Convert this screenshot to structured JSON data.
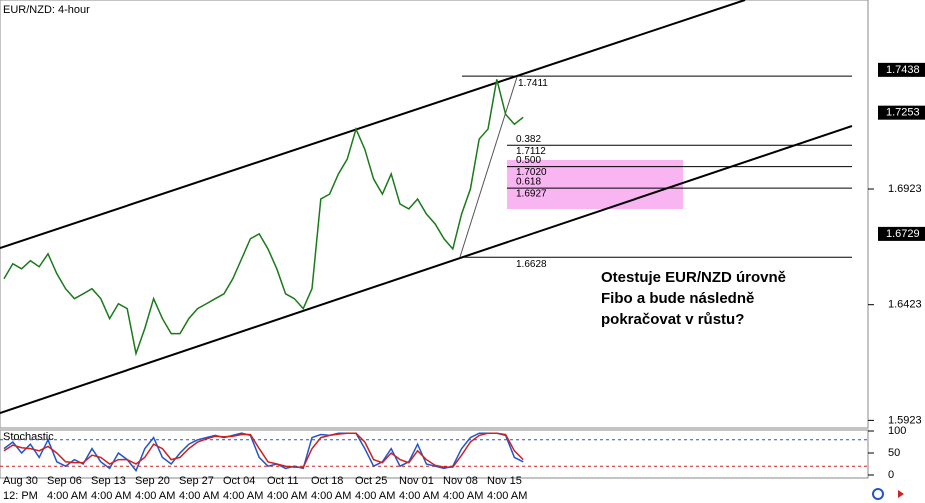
{
  "chart_data": [
    {
      "type": "line",
      "title": "EUR/NZD: 4-hour",
      "categories": [
        "Aug 30",
        null,
        null,
        null,
        null,
        "Sep 06",
        null,
        null,
        null,
        null,
        "Sep 13",
        null,
        null,
        null,
        null,
        "Sep 20",
        null,
        null,
        null,
        null,
        "Sep 27",
        null,
        null,
        null,
        null,
        "Oct 04",
        null,
        null,
        null,
        null,
        "Oct 11",
        null,
        null,
        null,
        null,
        "Oct 18",
        null,
        null,
        null,
        null,
        "Oct 25",
        null,
        null,
        null,
        null,
        "Nov 01",
        null,
        null,
        null,
        null,
        "Nov 08",
        null,
        null,
        null,
        null,
        "Nov 15",
        null,
        null,
        null,
        null
      ],
      "time_labels": [
        "12: PM",
        null,
        null,
        null,
        null,
        "4:00 AM",
        null,
        null,
        null,
        null,
        "4:00 AM",
        null,
        null,
        null,
        null,
        "4:00 AM",
        null,
        null,
        null,
        null,
        "4:00 AM",
        null,
        null,
        null,
        null,
        "4:00 AM",
        null,
        null,
        null,
        null,
        "4:00 AM",
        null,
        null,
        null,
        null,
        "4:00 AM",
        null,
        null,
        null,
        null,
        "4:00 AM",
        null,
        null,
        null,
        null,
        "4:00 AM",
        null,
        null,
        null,
        null,
        "4:00 AM",
        null,
        null,
        null,
        null,
        "4:00 AM",
        null,
        null,
        null,
        null
      ],
      "series": [
        {
          "color": "#1a7a1a",
          "values": [
            1.6535,
            1.66,
            1.6578,
            1.6613,
            1.6587,
            1.6643,
            1.6557,
            1.6492,
            1.6449,
            1.647,
            1.6492,
            1.6449,
            1.6363,
            1.6427,
            1.6406,
            1.6212,
            1.632,
            1.6449,
            1.6363,
            1.6298,
            1.6298,
            1.6363,
            1.6406,
            1.6427,
            1.6449,
            1.647,
            1.6535,
            1.6621,
            1.6708,
            1.6729,
            1.6664,
            1.6578,
            1.647,
            1.6449,
            1.6406,
            1.6492,
            1.688,
            1.6901,
            1.6988,
            1.7052,
            1.7182,
            1.7095,
            1.6966,
            1.6901,
            1.6988,
            1.6858,
            1.6837,
            1.688,
            1.6815,
            1.6772,
            1.6708,
            1.6664,
            1.6815,
            1.6923,
            1.7139,
            1.7182,
            1.7397,
            1.7246,
            1.7203,
            1.7233
          ]
        }
      ],
      "ylim": [
        1.589,
        1.774
      ],
      "yticks": [
        1.5923,
        1.6423,
        1.6923
      ],
      "price_markers": [
        1.7438,
        1.7253,
        1.6729
      ],
      "fib": {
        "high": 1.7411,
        "low": 1.6628,
        "levels": [
          {
            "ratio": "0.382",
            "price": 1.7112
          },
          {
            "ratio": "0.500",
            "price": {
              "value": 1.702,
              "label": "1.7020"
            }
          },
          {
            "ratio": "0.618",
            "price": 1.6927
          }
        ]
      },
      "annotation": [
        "Otestuje EUR/NZD úrovně",
        "Fibo a bude následně",
        "pokračovat v růstu?"
      ]
    },
    {
      "type": "line",
      "title": "Stochastic",
      "ylim": [
        0,
        100
      ],
      "yticks": [
        0,
        50,
        100
      ],
      "levels": [
        80,
        20
      ],
      "series": [
        {
          "color": "#2255cc",
          "values": [
            60,
            75,
            50,
            70,
            40,
            80,
            30,
            20,
            35,
            25,
            60,
            30,
            15,
            50,
            35,
            10,
            60,
            85,
            40,
            25,
            50,
            70,
            80,
            85,
            90,
            85,
            90,
            95,
            90,
            40,
            20,
            25,
            15,
            20,
            15,
            85,
            92,
            90,
            95,
            95,
            95,
            60,
            20,
            30,
            60,
            20,
            30,
            70,
            25,
            20,
            15,
            20,
            60,
            85,
            95,
            95,
            95,
            90,
            40,
            30
          ]
        },
        {
          "color": "#cc2222",
          "values": [
            55,
            68,
            62,
            60,
            55,
            65,
            50,
            30,
            28,
            28,
            45,
            40,
            25,
            35,
            35,
            25,
            40,
            70,
            60,
            35,
            40,
            60,
            75,
            82,
            88,
            87,
            88,
            92,
            92,
            60,
            30,
            25,
            20,
            18,
            17,
            60,
            85,
            90,
            93,
            95,
            95,
            75,
            35,
            28,
            50,
            35,
            28,
            55,
            35,
            22,
            18,
            18,
            45,
            75,
            90,
            95,
            95,
            92,
            55,
            35
          ]
        }
      ]
    }
  ]
}
